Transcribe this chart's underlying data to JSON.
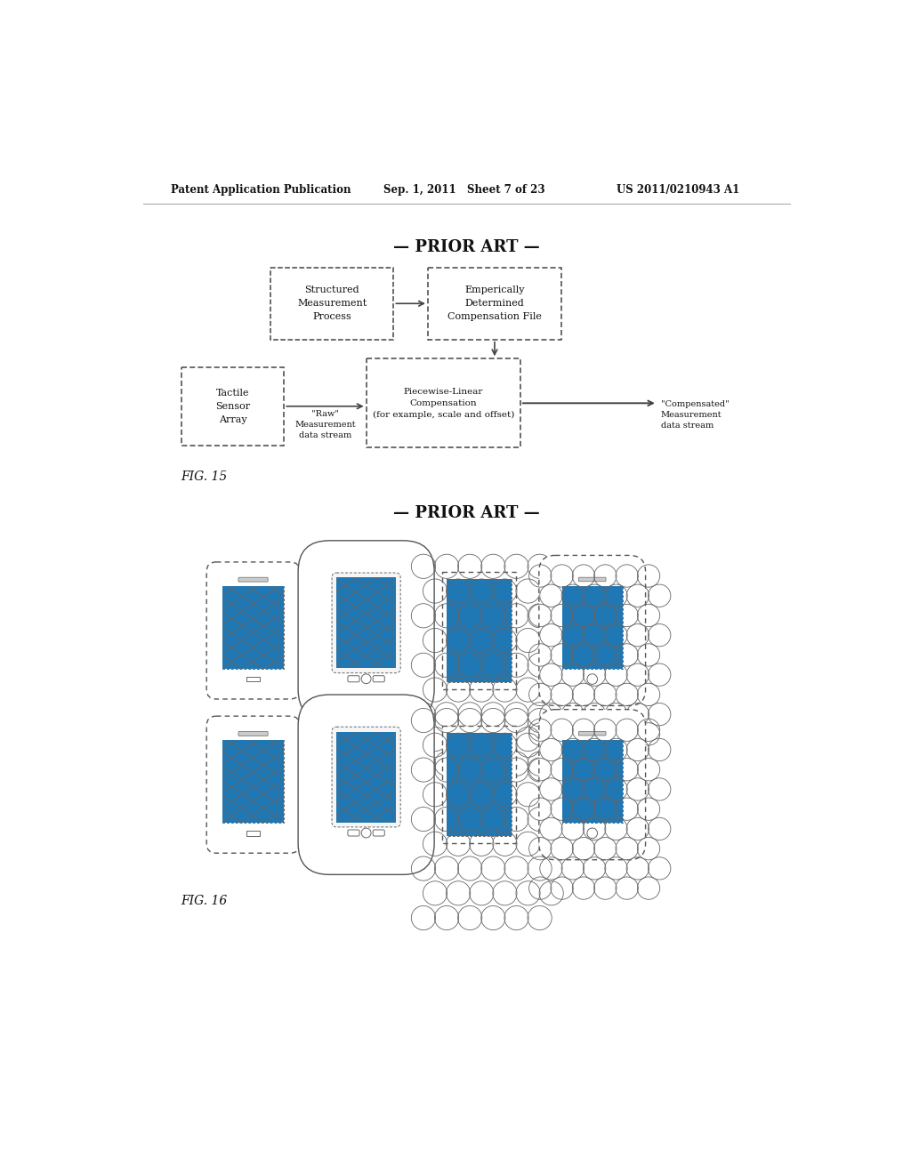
{
  "header_left": "Patent Application Publication",
  "header_mid": "Sep. 1, 2011   Sheet 7 of 23",
  "header_right": "US 2011/0210943 A1",
  "prior_art_1_label": "— PRIOR ART —",
  "prior_art_2_label": "— PRIOR ART —",
  "fig15_label": "FIG. 15",
  "fig16_label": "FIG. 16",
  "bg_color": "#ffffff",
  "line_color": "#444444",
  "text_color": "#111111"
}
